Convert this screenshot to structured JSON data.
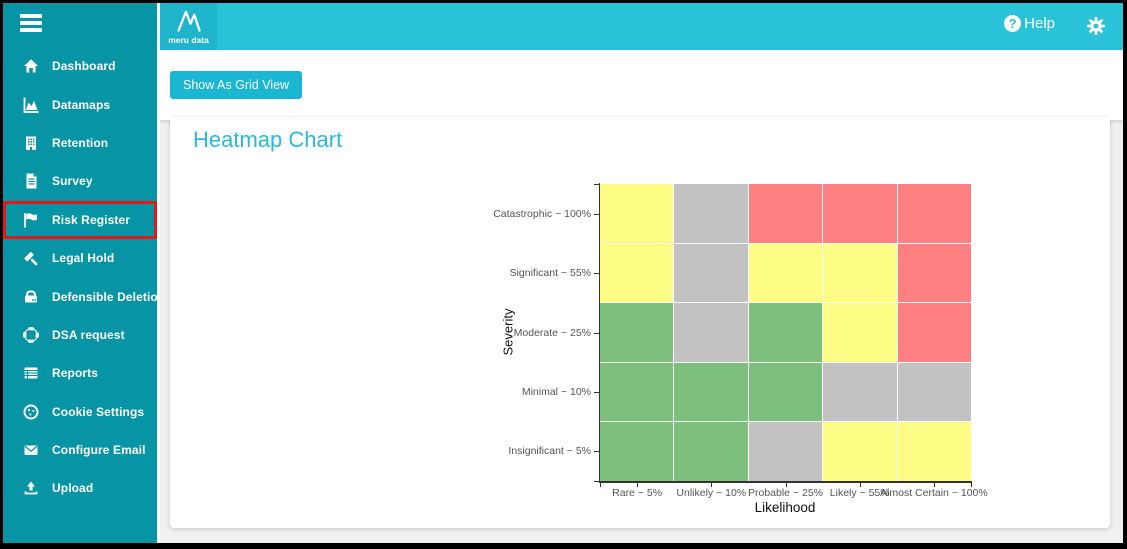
{
  "app": {
    "logo_text": "meru data"
  },
  "header": {
    "help_label": "Help",
    "help_icon_glyph": "?"
  },
  "sidebar": {
    "items": [
      {
        "id": "dashboard",
        "label": "Dashboard",
        "icon": "home-icon",
        "active": false
      },
      {
        "id": "datamaps",
        "label": "Datamaps",
        "icon": "area-chart-icon",
        "active": false
      },
      {
        "id": "retention",
        "label": "Retention",
        "icon": "building-icon",
        "active": false
      },
      {
        "id": "survey",
        "label": "Survey",
        "icon": "document-icon",
        "active": false
      },
      {
        "id": "risk-register",
        "label": "Risk Register",
        "icon": "flag-icon",
        "active": true
      },
      {
        "id": "legal-hold",
        "label": "Legal Hold",
        "icon": "gavel-icon",
        "active": false
      },
      {
        "id": "defensible-deletion",
        "label": "Defensible Deletion",
        "icon": "hard-drive-icon",
        "active": false
      },
      {
        "id": "dsa-request",
        "label": "DSA request",
        "icon": "life-ring-icon",
        "active": false
      },
      {
        "id": "reports",
        "label": "Reports",
        "icon": "report-table-icon",
        "active": false
      },
      {
        "id": "cookie-settings",
        "label": "Cookie Settings",
        "icon": "cookie-icon",
        "active": false
      },
      {
        "id": "configure-email",
        "label": "Configure Email",
        "icon": "envelope-icon",
        "active": false
      },
      {
        "id": "upload",
        "label": "Upload",
        "icon": "upload-icon",
        "active": false
      }
    ]
  },
  "toolbar": {
    "grid_view_button": "Show As Grid View"
  },
  "main": {
    "title": "Heatmap Chart"
  },
  "chart_data": {
    "type": "heatmap",
    "title": "Heatmap Chart",
    "xlabel": "Likelihood",
    "ylabel": "Severity",
    "x_categories": [
      "Rare ~ 5%",
      "Unlikely ~ 10%",
      "Probable ~ 25%",
      "Likely ~ 55%",
      "Almost Certain ~ 100%"
    ],
    "y_categories": [
      "Catastrophic ~ 100%",
      "Significant ~ 55%",
      "Moderate ~ 25%",
      "Minimal ~ 10%",
      "Insignificant ~ 5%"
    ],
    "cells": [
      [
        "yellow",
        "gray",
        "red",
        "red",
        "red"
      ],
      [
        "yellow",
        "gray",
        "yellow",
        "yellow",
        "red"
      ],
      [
        "green",
        "gray",
        "green",
        "yellow",
        "red"
      ],
      [
        "green",
        "green",
        "green",
        "gray",
        "gray"
      ],
      [
        "green",
        "green",
        "gray",
        "yellow",
        "yellow"
      ]
    ],
    "colors": {
      "green": "#7dc07e",
      "yellow": "#fdfd85",
      "red": "#ff8080",
      "gray": "#c2c2c2"
    },
    "grid_line_color": "#ffffff",
    "axis_color": "#333333",
    "legend": "none"
  },
  "theme": {
    "sidebar_bg": "#0795a5",
    "header_bg": "#2ac2d9",
    "logo_tile_bg": "#1eb4cb",
    "button_bg": "#1bb6d2",
    "title_color": "#2ab9d8",
    "active_item_border": "#e51717"
  }
}
